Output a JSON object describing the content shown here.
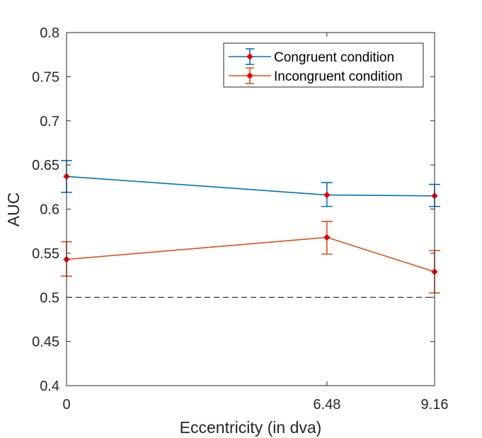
{
  "chart_data": {
    "type": "line",
    "xlabel": "Eccentricity (in dva)",
    "ylabel": "AUC",
    "xlim": [
      0,
      9.16
    ],
    "ylim": [
      0.4,
      0.8
    ],
    "x": [
      0,
      6.48,
      9.16
    ],
    "x_ticks": [
      "0",
      "6.48",
      "9.16"
    ],
    "y_ticks": [
      "0.4",
      "0.45",
      "0.5",
      "0.55",
      "0.6",
      "0.65",
      "0.7",
      "0.75",
      "0.8"
    ],
    "y_tick_values": [
      0.4,
      0.45,
      0.5,
      0.55,
      0.6,
      0.65,
      0.7,
      0.75,
      0.8
    ],
    "reference_line": {
      "y": 0.5,
      "style": "dashed"
    },
    "grid": false,
    "legend_position": "top-right",
    "marker_color": "#e8000b",
    "series": [
      {
        "name": "Congruent condition",
        "color": "#0072bd",
        "values": [
          0.637,
          0.616,
          0.615
        ],
        "error_low": [
          0.619,
          0.603,
          0.603
        ],
        "error_high": [
          0.655,
          0.63,
          0.628
        ]
      },
      {
        "name": "Incongruent condition",
        "color": "#d95319",
        "values": [
          0.543,
          0.568,
          0.529
        ],
        "error_low": [
          0.524,
          0.549,
          0.505
        ],
        "error_high": [
          0.563,
          0.586,
          0.553
        ]
      }
    ]
  }
}
